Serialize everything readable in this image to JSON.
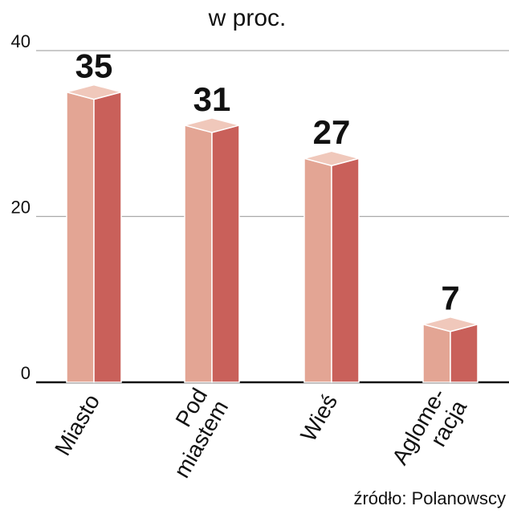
{
  "chart_data": {
    "type": "bar3d",
    "title": "w proc.",
    "categories": [
      [
        "Miasto"
      ],
      [
        "Pod",
        "miastem"
      ],
      [
        "Wieś"
      ],
      [
        "Aglome-",
        "racja"
      ]
    ],
    "values": [
      35,
      31,
      27,
      7
    ],
    "colors": {
      "front": "#e3a594",
      "side": "#c9605a",
      "top": "#f0c8bb"
    },
    "ylim": [
      0,
      40
    ],
    "yticks": [
      0,
      20,
      40
    ],
    "grid": true,
    "source": "źródło: Polanowscy"
  }
}
